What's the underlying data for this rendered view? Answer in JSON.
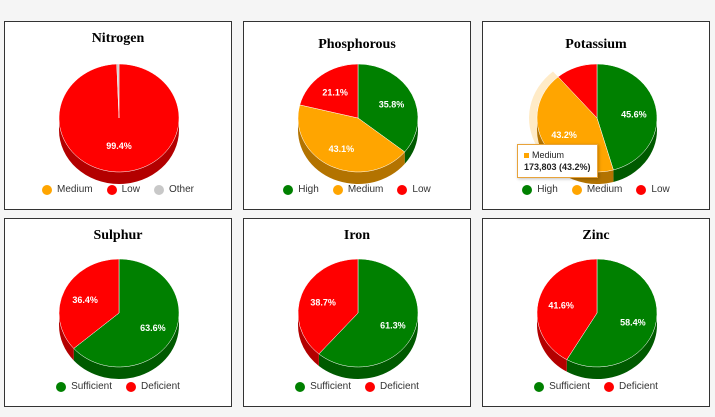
{
  "colors": {
    "Medium": "#FFA500",
    "Low": "#FF0000",
    "Other": "#C8C8C8",
    "High": "#008000",
    "Sufficient": "#008000",
    "Deficient": "#FF0000"
  },
  "chart_data": [
    {
      "type": "pie",
      "title": "Nitrogen",
      "slices": [
        {
          "label": "Low",
          "value": 99.4,
          "value_label": "99.4%"
        },
        {
          "label": "Other",
          "value": 0.6
        }
      ],
      "legend": [
        "Medium",
        "Low",
        "Other"
      ],
      "legend_position": "bottom"
    },
    {
      "type": "pie",
      "title": "Phosphorous",
      "slices": [
        {
          "label": "High",
          "value": 35.8,
          "value_label": "35.8%"
        },
        {
          "label": "Medium",
          "value": 43.1,
          "value_label": "43.1%"
        },
        {
          "label": "Low",
          "value": 21.1,
          "value_label": "21.1%"
        }
      ],
      "legend": [
        "High",
        "Medium",
        "Low"
      ],
      "legend_position": "bottom"
    },
    {
      "type": "pie",
      "title": "Potassium",
      "slices": [
        {
          "label": "High",
          "value": 45.6,
          "value_label": "45.6%"
        },
        {
          "label": "Medium",
          "value": 43.2,
          "value_label": "43.2%",
          "highlighted": true
        },
        {
          "label": "Low",
          "value": 11.2
        }
      ],
      "legend": [
        "High",
        "Medium",
        "Low"
      ],
      "legend_position": "bottom",
      "tooltip": {
        "series": "Medium",
        "value": "173,803 (43.2%)"
      }
    },
    {
      "type": "pie",
      "title": "Sulphur",
      "slices": [
        {
          "label": "Sufficient",
          "value": 63.6,
          "value_label": "63.6%"
        },
        {
          "label": "Deficient",
          "value": 36.4,
          "value_label": "36.4%"
        }
      ],
      "legend": [
        "Sufficient",
        "Deficient"
      ],
      "legend_position": "bottom"
    },
    {
      "type": "pie",
      "title": "Iron",
      "slices": [
        {
          "label": "Sufficient",
          "value": 61.3,
          "value_label": "61.3%"
        },
        {
          "label": "Deficient",
          "value": 38.7,
          "value_label": "38.7%"
        }
      ],
      "legend": [
        "Sufficient",
        "Deficient"
      ],
      "legend_position": "bottom"
    },
    {
      "type": "pie",
      "title": "Zinc",
      "slices": [
        {
          "label": "Sufficient",
          "value": 58.4,
          "value_label": "58.4%"
        },
        {
          "label": "Deficient",
          "value": 41.6,
          "value_label": "41.6%"
        }
      ],
      "legend": [
        "Sufficient",
        "Deficient"
      ],
      "legend_position": "bottom"
    }
  ]
}
